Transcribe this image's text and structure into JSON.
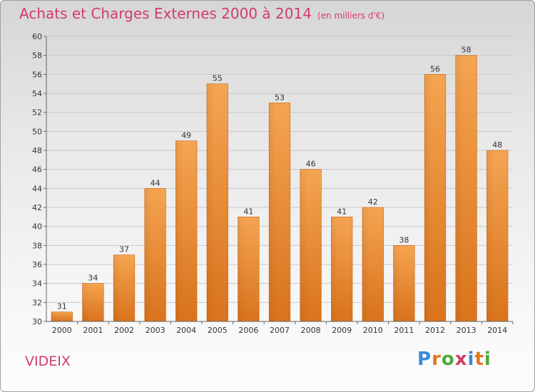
{
  "title": "Achats et Charges Externes 2000 à 2014",
  "subtitle": "(en milliers d'€)",
  "place": "VIDEIX",
  "logo": {
    "text": "Proxiti",
    "colors": [
      "#3a8ad6",
      "#e07820",
      "#4aaa3a",
      "#d23c6a",
      "#3a8ad6",
      "#e07820",
      "#4aaa3a"
    ]
  },
  "colors": {
    "bar": "#ee8f3a",
    "title": "#d23c6a",
    "grid": "#c8c8c8"
  },
  "chart_data": {
    "type": "bar",
    "categories": [
      "2000",
      "2001",
      "2002",
      "2003",
      "2004",
      "2005",
      "2006",
      "2007",
      "2008",
      "2009",
      "2010",
      "2011",
      "2012",
      "2013",
      "2014"
    ],
    "values": [
      31,
      34,
      37,
      44,
      49,
      55,
      41,
      53,
      46,
      41,
      42,
      38,
      56,
      58,
      48
    ],
    "ylim": [
      30,
      60
    ],
    "yticks": [
      30,
      32,
      34,
      36,
      38,
      40,
      42,
      44,
      46,
      48,
      50,
      52,
      54,
      56,
      58,
      60
    ],
    "grid": true
  }
}
